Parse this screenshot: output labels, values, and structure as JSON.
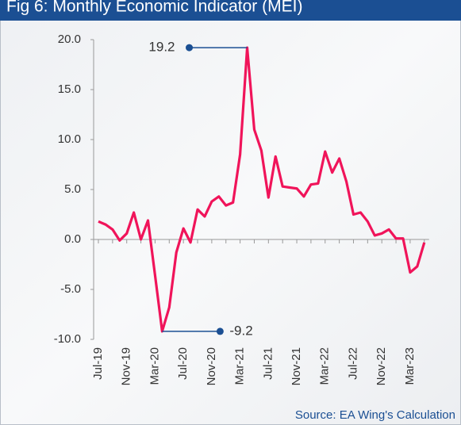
{
  "chart_data": {
    "type": "line",
    "title": "Fig 6: Monthly Economic Indicator (MEI)",
    "source": "Source: EA Wing's Calculation",
    "categories": [
      "Jul-19",
      null,
      null,
      null,
      "Nov-19",
      null,
      null,
      null,
      "Mar-20",
      null,
      null,
      null,
      "Jul-20",
      null,
      null,
      null,
      "Nov-20",
      null,
      null,
      null,
      "Mar-21",
      null,
      null,
      null,
      "Jul-21",
      null,
      null,
      null,
      "Nov-21",
      null,
      null,
      null,
      "Mar-22",
      null,
      null,
      null,
      "Jul-22",
      null,
      null,
      null,
      "Nov-22",
      null,
      null,
      null,
      "Mar-23",
      null,
      null
    ],
    "series": [
      {
        "name": "MEI",
        "color": "#f0145a",
        "values": [
          1.8,
          1.5,
          1.0,
          -0.1,
          0.6,
          2.7,
          0.0,
          1.9,
          -3.6,
          -9.2,
          -6.8,
          -1.3,
          1.1,
          -0.3,
          3.0,
          2.3,
          3.8,
          4.3,
          3.4,
          3.7,
          8.5,
          19.2,
          11.0,
          8.9,
          4.2,
          8.3,
          5.3,
          5.2,
          5.1,
          4.3,
          5.5,
          5.6,
          8.8,
          6.7,
          8.1,
          5.8,
          2.5,
          2.7,
          1.8,
          0.4,
          0.6,
          1.0,
          0.1,
          0.1,
          -3.3,
          -2.7,
          -0.3
        ]
      }
    ],
    "annotations": [
      {
        "text": "19.2"
      },
      {
        "text": "-9.2"
      }
    ],
    "ylim": [
      -10,
      20
    ],
    "yticks": [
      {
        "value": -10,
        "label": "-10.0"
      },
      {
        "value": -5,
        "label": "-5.0"
      },
      {
        "value": 0,
        "label": "0.0"
      },
      {
        "value": 5,
        "label": "5.0"
      },
      {
        "value": 10,
        "label": "10.0"
      },
      {
        "value": 15,
        "label": "15.0"
      },
      {
        "value": 20,
        "label": "20.0"
      }
    ]
  }
}
